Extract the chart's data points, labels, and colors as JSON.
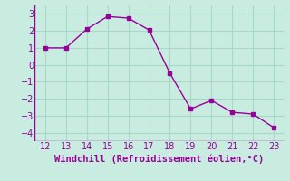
{
  "x": [
    12,
    13,
    14,
    15,
    16,
    17,
    18,
    19,
    20,
    21,
    22,
    23
  ],
  "y": [
    1.0,
    1.0,
    2.1,
    2.85,
    2.75,
    2.05,
    -0.5,
    -2.6,
    -2.1,
    -2.8,
    -2.9,
    -3.7
  ],
  "line_color": "#990099",
  "marker": "s",
  "marker_size": 2.5,
  "background_color": "#c8ece0",
  "grid_color": "#a8d8c8",
  "xlabel": "Windchill (Refroidissement éolien,°C)",
  "xlabel_color": "#990099",
  "xlabel_fontsize": 7.5,
  "tick_fontsize": 7,
  "xlim": [
    11.5,
    23.5
  ],
  "ylim": [
    -4.5,
    3.5
  ],
  "yticks": [
    -4,
    -3,
    -2,
    -1,
    0,
    1,
    2,
    3
  ],
  "xticks": [
    12,
    13,
    14,
    15,
    16,
    17,
    18,
    19,
    20,
    21,
    22,
    23
  ]
}
